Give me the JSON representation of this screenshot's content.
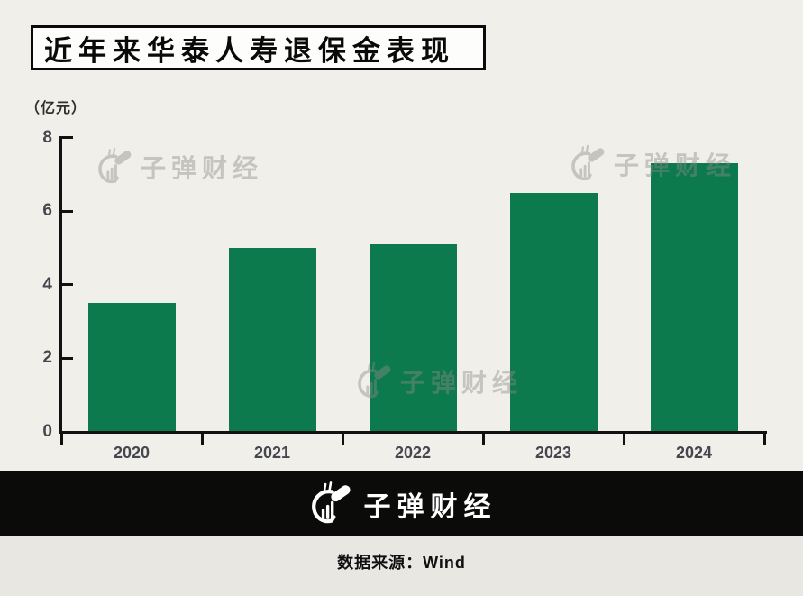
{
  "page": {
    "title": "近年来华泰人寿退保金表现",
    "unit_label": "（亿元）",
    "watermark_text": "子弹财经",
    "footer_logo_text": "子弹财经",
    "source_text": "数据来源：Wind"
  },
  "colors": {
    "background": "#f1efe9",
    "bar_green": "#0d7a4d",
    "axis": "#111111",
    "tick_label": "#45464e",
    "footer_bg": "#0b0b0a",
    "source_strip_bg": "#e9e7e1",
    "watermark_gray": "#8d8b86"
  },
  "chart_data": {
    "type": "bar",
    "title": "近年来华泰人寿退保金表现",
    "categories": [
      "2020",
      "2021",
      "2022",
      "2023",
      "2024"
    ],
    "values": [
      3.5,
      5.0,
      5.1,
      6.5,
      7.3
    ],
    "xlabel": "",
    "ylabel": "（亿元）",
    "ylim": [
      0,
      8
    ],
    "yticks": [
      0,
      2,
      4,
      6,
      8
    ],
    "grid": false,
    "legend": "none",
    "bar_color": "#0d7a4d"
  }
}
